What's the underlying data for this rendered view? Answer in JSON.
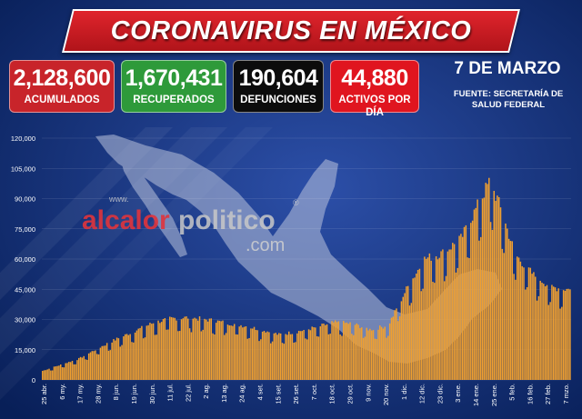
{
  "header": {
    "title": "CORONAVIRUS EN MÉXICO"
  },
  "stats": [
    {
      "value": "2,128,600",
      "label": "ACUMULADOS",
      "color": "#c8242a"
    },
    {
      "value": "1,670,431",
      "label": "RECUPERADOS",
      "color": "#2e9a3a"
    },
    {
      "value": "190,604",
      "label": "DEFUNCIONES",
      "color": "#0c0c0c"
    },
    {
      "value": "44,880",
      "label": "ACTIVOS POR DÍA",
      "color": "#e0151f"
    }
  ],
  "date": "7 DE MARZO",
  "source": "FUENTE: SECRETARÍA DE SALUD FEDERAL",
  "watermark": {
    "www": "www.",
    "brand_a": "alcalor",
    "brand_b": "politico",
    "reg": "®",
    "suffix": ".com"
  },
  "colors": {
    "background": "#0a2a6e",
    "bar": "#f0a030",
    "map": "#b9c2dc",
    "banner": "#d01c24"
  },
  "chart_data": {
    "type": "bar",
    "ylim": [
      0,
      120000
    ],
    "yticks": [
      0,
      15000,
      30000,
      45000,
      60000,
      75000,
      90000,
      105000,
      120000
    ],
    "ytick_labels": [
      "0",
      "15,000",
      "30,000",
      "45,000",
      "60,000",
      "75,000",
      "90,000",
      "105,000",
      "120,000"
    ],
    "xtick_labels": [
      "25 abr.",
      "6 my.",
      "17 my.",
      "28 my.",
      "8 jun.",
      "19 jun.",
      "30 jun.",
      "11 jul.",
      "22 jul.",
      "2 ag.",
      "13 ag.",
      "24 ag.",
      "4 set.",
      "15 set.",
      "26 set.",
      "7 oct.",
      "18 oct.",
      "29 oct.",
      "9 nov.",
      "20 nov.",
      "1 dic.",
      "12 dic.",
      "23 dic.",
      "3 ene.",
      "14 ene.",
      "25 ene.",
      "5 feb.",
      "16 feb.",
      "27 feb.",
      "7 mzo."
    ],
    "anchors": [
      [
        0,
        4500
      ],
      [
        11,
        7500
      ],
      [
        22,
        10500
      ],
      [
        33,
        15500
      ],
      [
        44,
        20000
      ],
      [
        55,
        24000
      ],
      [
        66,
        28000
      ],
      [
        77,
        30500
      ],
      [
        88,
        31000
      ],
      [
        99,
        30000
      ],
      [
        110,
        28500
      ],
      [
        121,
        27000
      ],
      [
        132,
        25000
      ],
      [
        143,
        22500
      ],
      [
        154,
        24000
      ],
      [
        165,
        26000
      ],
      [
        176,
        28500
      ],
      [
        187,
        28000
      ],
      [
        198,
        25000
      ],
      [
        209,
        27000
      ],
      [
        220,
        45000
      ],
      [
        231,
        60000
      ],
      [
        242,
        63000
      ],
      [
        253,
        70000
      ],
      [
        264,
        88000
      ],
      [
        270,
        98000
      ],
      [
        275,
        90000
      ],
      [
        286,
        62000
      ],
      [
        297,
        52000
      ],
      [
        308,
        46000
      ],
      [
        319,
        44880
      ]
    ]
  }
}
